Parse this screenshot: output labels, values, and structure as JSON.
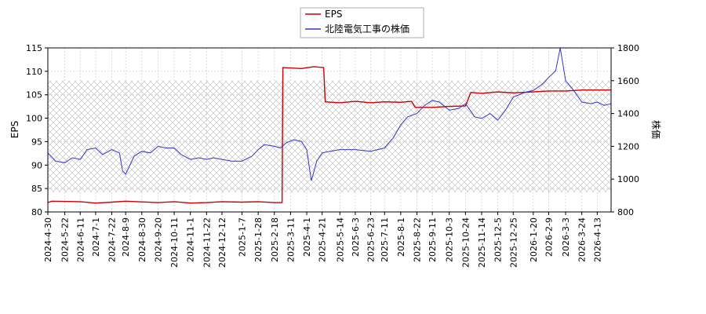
{
  "chart_data": {
    "type": "line",
    "legend": {
      "placement": "top-center",
      "entries": [
        "EPS",
        "北陸電気工事の株価"
      ]
    },
    "ylabel_left": "EPS",
    "ylabel_right": "株価",
    "ylim_left": [
      80,
      115
    ],
    "ylim_right": [
      800,
      1800
    ],
    "yticks_left": [
      80,
      85,
      90,
      95,
      100,
      105,
      110,
      115
    ],
    "yticks_right": [
      800,
      1000,
      1200,
      1400,
      1600,
      1800
    ],
    "grid": true,
    "hatched_band_right": [
      920,
      1600
    ],
    "x_range": [
      "2024-04-30",
      "2026-05-01"
    ],
    "x_ticks": [
      "2024-4-30",
      "2024-5-22",
      "2024-6-11",
      "2024-7-1",
      "2024-7-22",
      "2024-8-9",
      "2024-8-30",
      "2024-9-20",
      "2024-10-11",
      "2024-11-1",
      "2024-11-22",
      "2024-12-12",
      "2025-1-7",
      "2025-1-28",
      "2025-2-18",
      "2025-3-11",
      "2025-4-1",
      "2025-4-21",
      "2025-5-14",
      "2025-6-3",
      "2025-6-23",
      "2025-7-11",
      "2025-8-1",
      "2025-8-22",
      "2025-9-11",
      "2025-10-3",
      "2025-10-24",
      "2025-11-14",
      "2025-12-5",
      "2025-12-25",
      "2026-1-20",
      "2026-2-9",
      "2026-3-3",
      "2026-3-24",
      "2026-4-13"
    ],
    "series": [
      {
        "name": "EPS",
        "axis": "left",
        "color": "#cc0000",
        "points": [
          [
            "2024-04-30",
            82.0
          ],
          [
            "2024-05-05",
            82.3
          ],
          [
            "2024-06-11",
            82.2
          ],
          [
            "2024-07-01",
            81.9
          ],
          [
            "2024-07-22",
            82.1
          ],
          [
            "2024-08-09",
            82.3
          ],
          [
            "2024-09-20",
            82.0
          ],
          [
            "2024-10-11",
            82.2
          ],
          [
            "2024-11-01",
            81.9
          ],
          [
            "2024-11-22",
            82.0
          ],
          [
            "2024-12-12",
            82.2
          ],
          [
            "2025-01-07",
            82.1
          ],
          [
            "2025-01-28",
            82.2
          ],
          [
            "2025-02-18",
            82.0
          ],
          [
            "2025-02-28",
            82.0
          ],
          [
            "2025-03-01",
            110.8
          ],
          [
            "2025-03-25",
            110.6
          ],
          [
            "2025-04-10",
            111.0
          ],
          [
            "2025-04-23",
            110.8
          ],
          [
            "2025-04-25",
            103.5
          ],
          [
            "2025-05-14",
            103.3
          ],
          [
            "2025-06-03",
            103.6
          ],
          [
            "2025-06-23",
            103.3
          ],
          [
            "2025-07-11",
            103.5
          ],
          [
            "2025-08-01",
            103.4
          ],
          [
            "2025-08-15",
            103.6
          ],
          [
            "2025-08-20",
            102.3
          ],
          [
            "2025-09-11",
            102.3
          ],
          [
            "2025-10-03",
            102.5
          ],
          [
            "2025-10-24",
            102.6
          ],
          [
            "2025-10-31",
            105.5
          ],
          [
            "2025-11-14",
            105.3
          ],
          [
            "2025-12-05",
            105.6
          ],
          [
            "2025-12-25",
            105.4
          ],
          [
            "2026-01-20",
            105.6
          ],
          [
            "2026-02-09",
            105.8
          ],
          [
            "2026-03-03",
            105.8
          ],
          [
            "2026-03-24",
            106.0
          ],
          [
            "2026-04-13",
            106.0
          ],
          [
            "2026-05-01",
            106.0
          ]
        ]
      },
      {
        "name": "北陸電気工事の株価",
        "axis": "right",
        "color": "#3333cc",
        "points": [
          [
            "2024-04-30",
            1160
          ],
          [
            "2024-05-10",
            1110
          ],
          [
            "2024-05-22",
            1100
          ],
          [
            "2024-06-01",
            1130
          ],
          [
            "2024-06-11",
            1120
          ],
          [
            "2024-06-20",
            1180
          ],
          [
            "2024-07-01",
            1190
          ],
          [
            "2024-07-10",
            1150
          ],
          [
            "2024-07-22",
            1180
          ],
          [
            "2024-08-01",
            1160
          ],
          [
            "2024-08-05",
            1050
          ],
          [
            "2024-08-09",
            1030
          ],
          [
            "2024-08-20",
            1140
          ],
          [
            "2024-08-30",
            1170
          ],
          [
            "2024-09-10",
            1160
          ],
          [
            "2024-09-20",
            1200
          ],
          [
            "2024-09-30",
            1190
          ],
          [
            "2024-10-11",
            1190
          ],
          [
            "2024-10-20",
            1150
          ],
          [
            "2024-11-01",
            1120
          ],
          [
            "2024-11-12",
            1130
          ],
          [
            "2024-11-22",
            1120
          ],
          [
            "2024-12-01",
            1130
          ],
          [
            "2024-12-12",
            1120
          ],
          [
            "2024-12-25",
            1110
          ],
          [
            "2025-01-07",
            1110
          ],
          [
            "2025-01-20",
            1140
          ],
          [
            "2025-01-28",
            1180
          ],
          [
            "2025-02-05",
            1210
          ],
          [
            "2025-02-18",
            1200
          ],
          [
            "2025-02-26",
            1190
          ],
          [
            "2025-03-05",
            1220
          ],
          [
            "2025-03-15",
            1240
          ],
          [
            "2025-03-25",
            1230
          ],
          [
            "2025-04-01",
            1180
          ],
          [
            "2025-04-07",
            990
          ],
          [
            "2025-04-14",
            1110
          ],
          [
            "2025-04-21",
            1160
          ],
          [
            "2025-05-01",
            1170
          ],
          [
            "2025-05-14",
            1180
          ],
          [
            "2025-06-03",
            1180
          ],
          [
            "2025-06-23",
            1170
          ],
          [
            "2025-07-11",
            1190
          ],
          [
            "2025-07-22",
            1250
          ],
          [
            "2025-08-01",
            1330
          ],
          [
            "2025-08-10",
            1380
          ],
          [
            "2025-08-22",
            1400
          ],
          [
            "2025-09-01",
            1450
          ],
          [
            "2025-09-11",
            1480
          ],
          [
            "2025-09-20",
            1470
          ],
          [
            "2025-10-03",
            1420
          ],
          [
            "2025-10-15",
            1430
          ],
          [
            "2025-10-24",
            1460
          ],
          [
            "2025-11-05",
            1380
          ],
          [
            "2025-11-14",
            1370
          ],
          [
            "2025-11-25",
            1400
          ],
          [
            "2025-12-05",
            1360
          ],
          [
            "2025-12-15",
            1420
          ],
          [
            "2025-12-25",
            1500
          ],
          [
            "2026-01-10",
            1530
          ],
          [
            "2026-01-20",
            1540
          ],
          [
            "2026-02-01",
            1580
          ],
          [
            "2026-02-09",
            1620
          ],
          [
            "2026-02-18",
            1660
          ],
          [
            "2026-02-24",
            1800
          ],
          [
            "2026-03-03",
            1600
          ],
          [
            "2026-03-12",
            1550
          ],
          [
            "2026-03-24",
            1470
          ],
          [
            "2026-04-05",
            1460
          ],
          [
            "2026-04-13",
            1470
          ],
          [
            "2026-04-22",
            1450
          ],
          [
            "2026-05-01",
            1460
          ]
        ]
      }
    ]
  }
}
